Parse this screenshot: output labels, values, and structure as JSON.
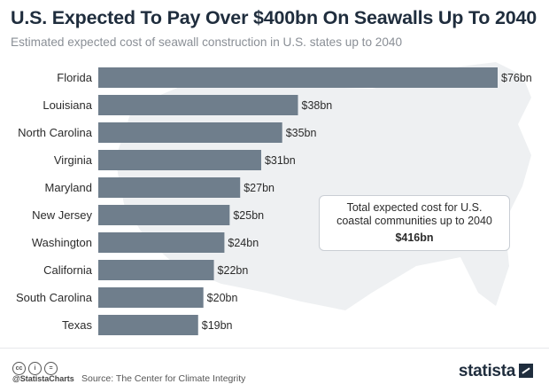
{
  "title": "U.S. Expected To Pay Over $400bn On Seawalls Up To 2040",
  "subtitle": "Estimated expected cost of seawall construction in U.S. states up to 2040",
  "chart_data": {
    "type": "bar",
    "orientation": "horizontal",
    "title": "U.S. Expected To Pay Over $400bn On Seawalls Up To 2040",
    "subtitle": "Estimated expected cost of seawall construction in U.S. states up to 2040",
    "categories": [
      "Florida",
      "Louisiana",
      "North Carolina",
      "Virginia",
      "Maryland",
      "New Jersey",
      "Washington",
      "California",
      "South Carolina",
      "Texas"
    ],
    "values": [
      76,
      38,
      35,
      31,
      27,
      25,
      24,
      22,
      20,
      19
    ],
    "value_labels": [
      "$76bn",
      "$38bn",
      "$35bn",
      "$31bn",
      "$27bn",
      "$25bn",
      "$24bn",
      "$22bn",
      "$20bn",
      "$19bn"
    ],
    "unit": "bn USD",
    "xlim": [
      0,
      76
    ],
    "grid": false,
    "bar_color": "#6f7e8c",
    "annotation": {
      "text": "Total expected cost for U.S. coastal communities up to 2040",
      "value": "$416bn"
    }
  },
  "footer": {
    "handle": "@StatistaCharts",
    "source": "Source: The Center for Climate Integrity",
    "logo": "statista",
    "license_icons": [
      "cc-icon",
      "by-icon",
      "nd-icon"
    ],
    "license_icon_glyphs": [
      "cc",
      "i",
      "="
    ]
  },
  "colors": {
    "title": "#1f2d3d",
    "subtitle": "#8a8f96",
    "bar": "#6f7e8c",
    "map": "#eef0f2"
  }
}
